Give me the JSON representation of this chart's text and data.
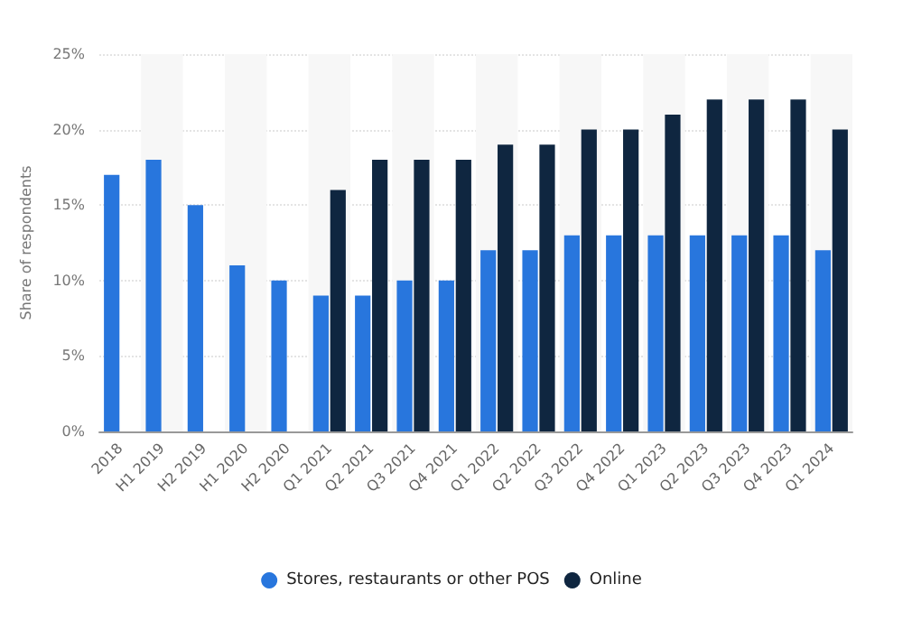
{
  "chart_data": {
    "type": "bar",
    "ylabel": "Share of respondents",
    "categories": [
      "2018",
      "H1 2019",
      "H2 2019",
      "H1 2020",
      "H2 2020",
      "Q1 2021",
      "Q2 2021",
      "Q3 2021",
      "Q4 2021",
      "Q1 2022",
      "Q2 2022",
      "Q3 2022",
      "Q4 2022",
      "Q1 2023",
      "Q2 2023",
      "Q3 2023",
      "Q4 2023",
      "Q1 2024"
    ],
    "series": [
      {
        "name": "Stores, restaurants or other POS",
        "color": "#2876dd",
        "values": [
          17,
          18,
          15,
          11,
          10,
          9,
          9,
          10,
          10,
          12,
          12,
          13,
          13,
          13,
          13,
          13,
          13,
          12
        ]
      },
      {
        "name": "Online",
        "color": "#0f2640",
        "values": [
          null,
          null,
          null,
          null,
          null,
          16,
          18,
          18,
          18,
          19,
          19,
          20,
          20,
          21,
          22,
          22,
          22,
          20
        ]
      }
    ],
    "ylim": [
      0,
      25
    ],
    "yticks": [
      {
        "value": 0,
        "label": "0%"
      },
      {
        "value": 5,
        "label": "5%"
      },
      {
        "value": 10,
        "label": "10%"
      },
      {
        "value": 15,
        "label": "15%"
      },
      {
        "value": 20,
        "label": "20%"
      },
      {
        "value": 25,
        "label": "25%"
      }
    ],
    "grid": "y",
    "legend": "bottom"
  }
}
